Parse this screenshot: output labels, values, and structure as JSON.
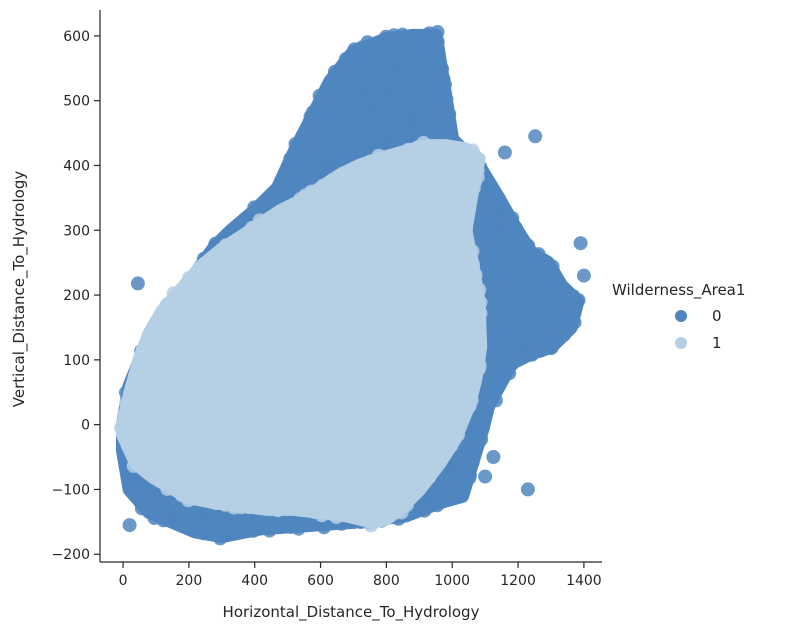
{
  "chart_data": {
    "type": "scatter",
    "title": "",
    "xlabel": "Horizontal_Distance_To_Hydrology",
    "ylabel": "Vertical_Distance_To_Hydrology",
    "xlim": [
      -70,
      1455
    ],
    "ylim": [
      -212,
      640
    ],
    "x_ticks": [
      0,
      200,
      400,
      600,
      800,
      1000,
      1200,
      1400
    ],
    "y_ticks": [
      -200,
      -100,
      0,
      100,
      200,
      300,
      400,
      500,
      600
    ],
    "x_tick_labels": [
      "0",
      "200",
      "400",
      "600",
      "800",
      "1000",
      "1200",
      "1400"
    ],
    "y_tick_labels": [
      "−200",
      "−100",
      "0",
      "100",
      "200",
      "300",
      "400",
      "500",
      "600"
    ],
    "grid": false,
    "legend": {
      "title": "Wilderness_Area1",
      "placement": "right",
      "entries": [
        "0",
        "1"
      ]
    },
    "colors": {
      "0": "#4f86bf",
      "1": "#b5cfe5"
    },
    "series": [
      {
        "name": "0",
        "regions": [
          {
            "kind": "polygon",
            "points": [
              [
                0,
                0
              ],
              [
                20,
                60
              ],
              [
                60,
                110
              ],
              [
                120,
                160
              ],
              [
                180,
                205
              ],
              [
                230,
                240
              ],
              [
                280,
                275
              ],
              [
                330,
                300
              ],
              [
                400,
                330
              ],
              [
                470,
                365
              ],
              [
                520,
                420
              ],
              [
                570,
                470
              ],
              [
                630,
                530
              ],
              [
                700,
                575
              ],
              [
                800,
                595
              ],
              [
                880,
                600
              ],
              [
                950,
                600
              ],
              [
                1000,
                440
              ],
              [
                1080,
                400
              ],
              [
                1140,
                350
              ],
              [
                1190,
                305
              ],
              [
                1240,
                265
              ],
              [
                1290,
                250
              ],
              [
                1330,
                215
              ],
              [
                1380,
                190
              ],
              [
                1360,
                150
              ],
              [
                1300,
                120
              ],
              [
                1240,
                110
              ],
              [
                1180,
                95
              ],
              [
                1110,
                30
              ],
              [
                1090,
                -10
              ],
              [
                1060,
                -60
              ],
              [
                1030,
                -110
              ],
              [
                960,
                -120
              ],
              [
                860,
                -140
              ],
              [
                700,
                -150
              ],
              [
                560,
                -155
              ],
              [
                420,
                -160
              ],
              [
                300,
                -172
              ],
              [
                220,
                -165
              ],
              [
                150,
                -150
              ],
              [
                80,
                -135
              ],
              [
                20,
                -100
              ],
              [
                0,
                -40
              ]
            ]
          },
          {
            "kind": "points",
            "points": [
              [
                45,
                218
              ],
              [
                20,
                -155
              ],
              [
                30,
                -100
              ],
              [
                80,
                -130
              ],
              [
                1252,
                445
              ],
              [
                1160,
                420
              ],
              [
                1000,
                440
              ],
              [
                1390,
                280
              ],
              [
                1400,
                230
              ],
              [
                1310,
                210
              ],
              [
                1270,
                160
              ],
              [
                1230,
                -100
              ],
              [
                1125,
                -50
              ],
              [
                1100,
                -80
              ],
              [
                1250,
                150
              ]
            ]
          }
        ]
      },
      {
        "name": "1",
        "regions": [
          {
            "kind": "polygon",
            "points": [
              [
                0,
                0
              ],
              [
                20,
                45
              ],
              [
                50,
                100
              ],
              [
                80,
                140
              ],
              [
                120,
                175
              ],
              [
                180,
                210
              ],
              [
                240,
                245
              ],
              [
                300,
                270
              ],
              [
                360,
                290
              ],
              [
                420,
                310
              ],
              [
                480,
                330
              ],
              [
                540,
                345
              ],
              [
                600,
                365
              ],
              [
                660,
                385
              ],
              [
                720,
                400
              ],
              [
                780,
                410
              ],
              [
                850,
                420
              ],
              [
                920,
                430
              ],
              [
                980,
                430
              ],
              [
                1040,
                425
              ],
              [
                1080,
                410
              ],
              [
                1060,
                360
              ],
              [
                1040,
                300
              ],
              [
                1060,
                250
              ],
              [
                1080,
                190
              ],
              [
                1085,
                120
              ],
              [
                1070,
                70
              ],
              [
                1050,
                30
              ],
              [
                1010,
                -20
              ],
              [
                960,
                -60
              ],
              [
                900,
                -100
              ],
              [
                840,
                -130
              ],
              [
                800,
                -145
              ],
              [
                760,
                -150
              ],
              [
                680,
                -140
              ],
              [
                600,
                -135
              ],
              [
                520,
                -130
              ],
              [
                440,
                -130
              ],
              [
                360,
                -125
              ],
              [
                280,
                -120
              ],
              [
                200,
                -112
              ],
              [
                140,
                -95
              ],
              [
                90,
                -80
              ],
              [
                40,
                -60
              ],
              [
                0,
                -15
              ]
            ]
          }
        ]
      }
    ]
  }
}
